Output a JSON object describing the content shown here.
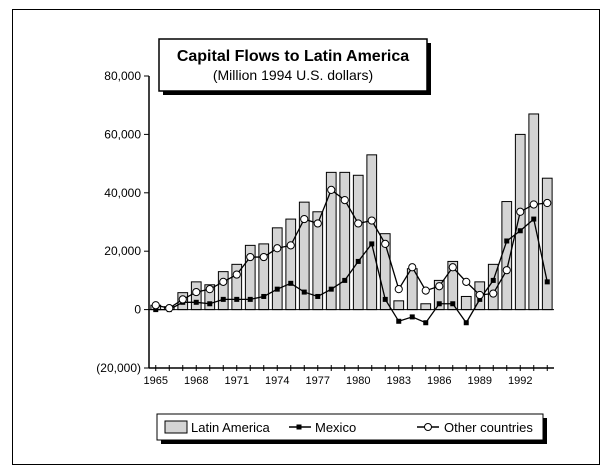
{
  "chart_data": {
    "type": "bar",
    "title": "Capital Flows to Latin America",
    "subtitle": "(Million 1994 U.S. dollars)",
    "xlabel": "",
    "ylabel": "",
    "ylim": [
      -20000,
      80000
    ],
    "yticks": [
      -20000,
      0,
      20000,
      40000,
      60000,
      80000
    ],
    "ytick_labels": [
      "(20,000)",
      "0",
      "20,000",
      "40,000",
      "60,000",
      "80,000"
    ],
    "x": [
      1965,
      1966,
      1967,
      1968,
      1969,
      1970,
      1971,
      1972,
      1973,
      1974,
      1975,
      1976,
      1977,
      1978,
      1979,
      1980,
      1981,
      1982,
      1983,
      1984,
      1985,
      1986,
      1987,
      1988,
      1989,
      1990,
      1991,
      1992,
      1993,
      1994
    ],
    "xtick_labels": [
      "1965",
      "1968",
      "1971",
      "1974",
      "1977",
      "1980",
      "1983",
      "1986",
      "1989",
      "1992"
    ],
    "grid": false,
    "legend_position": "bottom",
    "series": [
      {
        "name": "Latin America",
        "kind": "bar",
        "color": "#d4d4d4",
        "values": [
          1500,
          1000,
          5800,
          9500,
          8500,
          13000,
          15500,
          22000,
          22500,
          28000,
          31000,
          36800,
          33500,
          47000,
          47000,
          46000,
          53000,
          26000,
          3000,
          14000,
          2000,
          10000,
          16500,
          4500,
          9500,
          15500,
          37000,
          60000,
          67000,
          45000
        ]
      },
      {
        "name": "Mexico",
        "kind": "line",
        "marker": "square",
        "color": "#000000",
        "values": [
          0,
          0,
          2500,
          2500,
          2000,
          3500,
          3500,
          3500,
          4500,
          7000,
          9000,
          6000,
          4500,
          7000,
          10000,
          16500,
          22500,
          3500,
          -4000,
          -2500,
          -4500,
          2000,
          2000,
          -4500,
          3500,
          10000,
          23500,
          27000,
          31000,
          9500
        ]
      },
      {
        "name": "Other countries",
        "kind": "line",
        "marker": "circle",
        "color": "#000000",
        "values": [
          1500,
          500,
          3500,
          6000,
          7000,
          9500,
          12000,
          18000,
          18000,
          21000,
          22000,
          31000,
          29500,
          41000,
          37500,
          29500,
          30500,
          22500,
          7000,
          14500,
          6500,
          8000,
          14500,
          9500,
          5000,
          5500,
          13500,
          33500,
          36000,
          36500
        ]
      }
    ]
  }
}
